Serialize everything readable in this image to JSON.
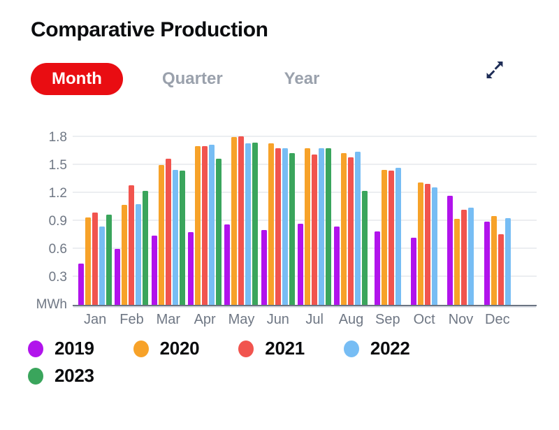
{
  "header": {
    "title": "Comparative Production",
    "expand_icon": "expand-arrows",
    "expand_icon_color": "#1e2d56"
  },
  "tabs": [
    {
      "label": "Month",
      "active": true
    },
    {
      "label": "Quarter",
      "active": false
    },
    {
      "label": "Year",
      "active": false
    }
  ],
  "colors": {
    "active_tab_bg": "#e90d12",
    "active_tab_text": "#ffffff",
    "inactive_tab_text": "#9aa1ac",
    "axis_text": "#6f7784",
    "gridline": "#eceef1",
    "axis_line": "#6b7482",
    "bottom_bar": "#1c2a52"
  },
  "chart_data": {
    "type": "bar",
    "title": "Comparative Production",
    "unit_label": "MWh",
    "xlabel": "",
    "ylabel": "MWh",
    "ylim": [
      0,
      1.8
    ],
    "y_ticks": [
      0.3,
      0.6,
      0.9,
      1.2,
      1.5,
      1.8
    ],
    "grid": true,
    "legend_position": "bottom",
    "categories": [
      "Jan",
      "Feb",
      "Mar",
      "Apr",
      "May",
      "Jun",
      "Jul",
      "Aug",
      "Sep",
      "Oct",
      "Nov",
      "Dec"
    ],
    "series": [
      {
        "name": "2019",
        "color": "#b113ec",
        "values": [
          0.44,
          0.6,
          0.74,
          0.78,
          0.86,
          0.8,
          0.87,
          0.84,
          0.79,
          0.72,
          1.17,
          0.89
        ]
      },
      {
        "name": "2020",
        "color": "#f7a229",
        "values": [
          0.94,
          1.07,
          1.5,
          1.7,
          1.8,
          1.73,
          1.68,
          1.63,
          1.45,
          1.31,
          0.92,
          0.95
        ]
      },
      {
        "name": "2021",
        "color": "#f1544e",
        "values": [
          0.99,
          1.28,
          1.57,
          1.7,
          1.81,
          1.68,
          1.61,
          1.58,
          1.44,
          1.3,
          1.02,
          0.76
        ]
      },
      {
        "name": "2022",
        "color": "#77bdf4",
        "values": [
          0.84,
          1.08,
          1.45,
          1.72,
          1.73,
          1.68,
          1.68,
          1.64,
          1.47,
          1.26,
          1.04,
          0.93
        ]
      },
      {
        "name": "2023",
        "color": "#3aa55c",
        "values": [
          0.97,
          1.22,
          1.44,
          1.57,
          1.74,
          1.63,
          1.68,
          1.22,
          null,
          null,
          null,
          null
        ]
      }
    ]
  }
}
